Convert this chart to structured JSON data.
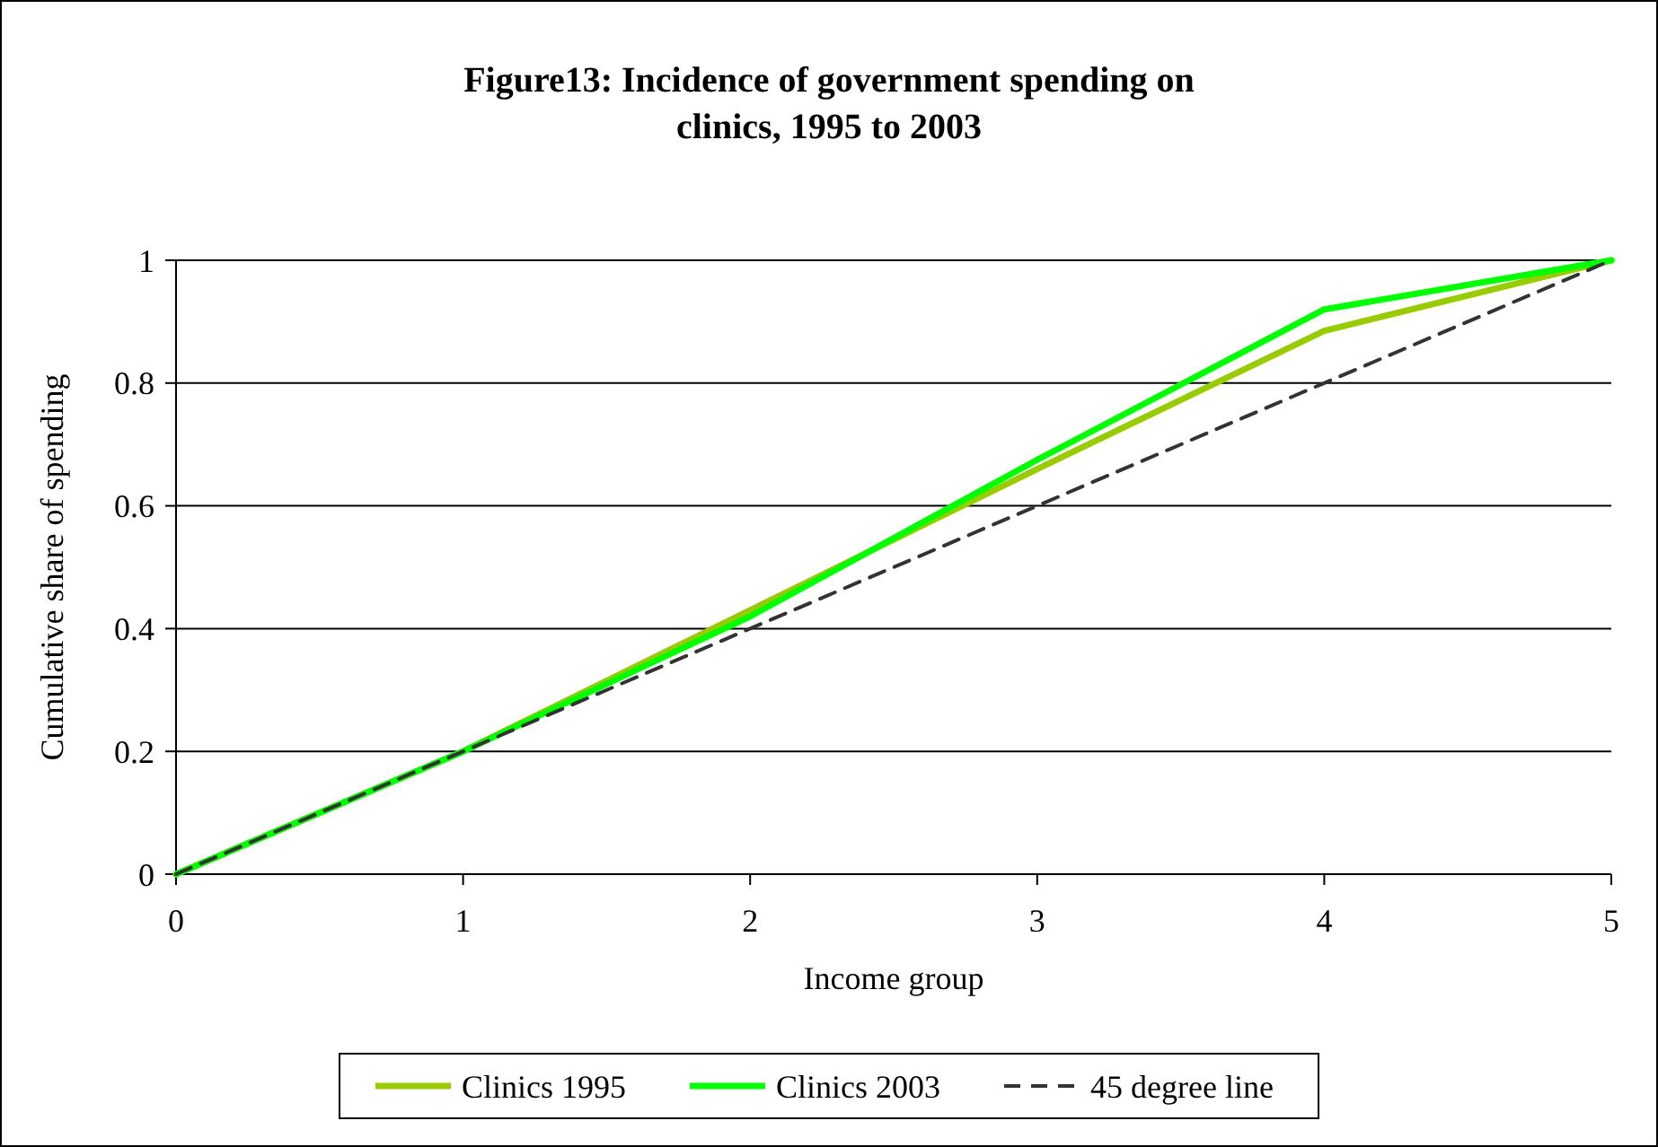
{
  "chart_data": {
    "type": "line",
    "title": "Figure13: Incidence of government spending on clinics, 1995 to 2003",
    "xlabel": "Income group",
    "ylabel": "Cumulative share of spending",
    "x": [
      0,
      1,
      2,
      3,
      4,
      5
    ],
    "series": [
      {
        "name": "Clinics 1995",
        "color": "#99cc00",
        "values": [
          0,
          0.2,
          0.43,
          0.66,
          0.885,
          1
        ]
      },
      {
        "name": "Clinics 2003",
        "color": "#00ff00",
        "values": [
          0,
          0.2,
          0.42,
          0.675,
          0.92,
          1
        ]
      },
      {
        "name": "45 degree line",
        "color": "#333333",
        "values": [
          0,
          0.2,
          0.4,
          0.6,
          0.8,
          1
        ],
        "line_style": "dashed"
      }
    ],
    "xlim": [
      0,
      5
    ],
    "xticks": [
      0,
      1,
      2,
      3,
      4,
      5
    ],
    "ylim": [
      0,
      1
    ],
    "yticks": [
      0,
      0.2,
      0.4,
      0.6,
      0.8,
      1
    ],
    "grid": "y",
    "legend": "bottom",
    "marker": "none"
  }
}
